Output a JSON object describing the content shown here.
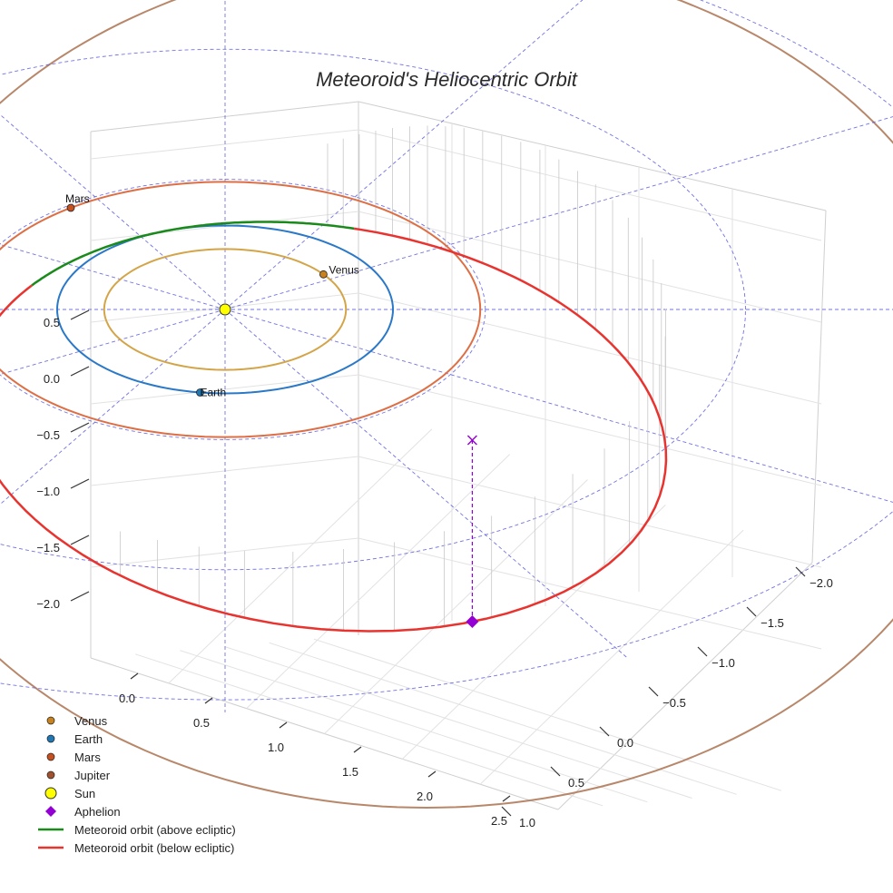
{
  "chart_data": {
    "type": "3d-orbit",
    "title": "Meteoroid's Heliocentric Orbit",
    "axes": {
      "z_ticks": [
        "0.5",
        "0.0",
        "−0.5",
        "−1.0",
        "−1.5",
        "−2.0"
      ],
      "x_ticks": [
        "0.0",
        "0.5",
        "1.0",
        "1.5",
        "2.0",
        "2.5"
      ],
      "y_ticks": [
        "−2.0",
        "−1.5",
        "−1.0",
        "−0.5",
        "0.0",
        "0.5",
        "1.0"
      ]
    },
    "planets": [
      {
        "name": "Venus",
        "label": "Venus",
        "color": "#c8821e",
        "orbit_color": "#d4a548",
        "radius_au": 0.72
      },
      {
        "name": "Earth",
        "label": "Earth",
        "color": "#1f77b4",
        "orbit_color": "#2a78c8",
        "radius_au": 1.0
      },
      {
        "name": "Mars",
        "label": "Mars",
        "color": "#c8501e",
        "orbit_color": "#de6f45",
        "radius_au": 1.52
      },
      {
        "name": "Jupiter",
        "label": "",
        "color": "#a0522d",
        "orbit_color": "#b8876a",
        "radius_au": 5.2
      }
    ],
    "sun": {
      "name": "Sun",
      "color": "#ffff00"
    },
    "aphelion": {
      "name": "Aphelion",
      "color": "#9400d3"
    },
    "orbit_segments": [
      {
        "name": "Meteoroid orbit (above ecliptic)",
        "color": "#1a8a1a"
      },
      {
        "name": "Meteoroid orbit (below ecliptic)",
        "color": "#e8332f"
      }
    ],
    "reference_grid_color": "#5a5ae0",
    "legend": [
      {
        "label": "Venus",
        "kind": "dot",
        "color": "#c8821e"
      },
      {
        "label": "Earth",
        "kind": "dot",
        "color": "#1f77b4"
      },
      {
        "label": "Mars",
        "kind": "dot",
        "color": "#c8501e"
      },
      {
        "label": "Jupiter",
        "kind": "dot",
        "color": "#a0522d"
      },
      {
        "label": "Sun",
        "kind": "sun",
        "color": "#ffff00"
      },
      {
        "label": "Aphelion",
        "kind": "diamond",
        "color": "#9400d3"
      },
      {
        "label": "Meteoroid orbit (above ecliptic)",
        "kind": "line",
        "color": "#1a8a1a"
      },
      {
        "label": "Meteoroid orbit (below ecliptic)",
        "kind": "line",
        "color": "#e8332f"
      }
    ]
  }
}
